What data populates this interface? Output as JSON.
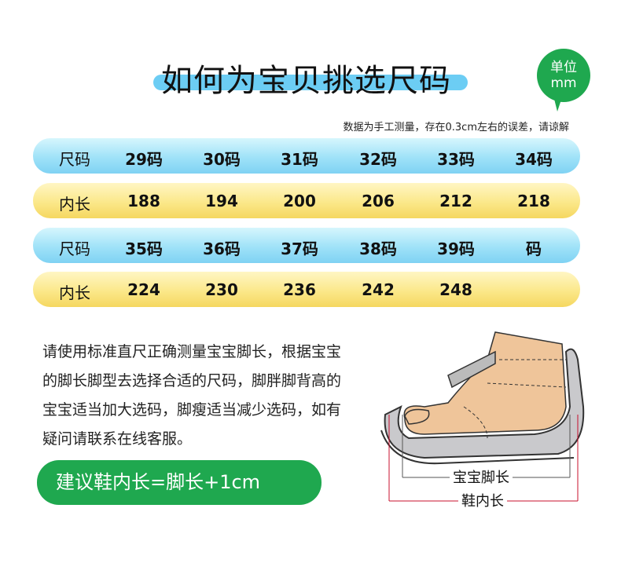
{
  "header": {
    "title": "如何为宝贝挑选尺码",
    "unit_line1": "单位",
    "unit_line2": "mm",
    "note": "数据为手工测量，存在0.3cm左右的误差，请谅解"
  },
  "table": {
    "rows": [
      {
        "label": "尺码",
        "values": [
          "29码",
          "30码",
          "31码",
          "32码",
          "33码",
          "34码"
        ]
      },
      {
        "label": "内长",
        "values": [
          "188",
          "194",
          "200",
          "206",
          "212",
          "218"
        ]
      },
      {
        "label": "尺码",
        "values": [
          "35码",
          "36码",
          "37码",
          "38码",
          "39码",
          "码"
        ]
      },
      {
        "label": "内长",
        "values": [
          "224",
          "230",
          "236",
          "242",
          "248",
          ""
        ]
      }
    ]
  },
  "description": "请使用标准直尺正确测量宝宝脚长，根据宝宝的脚长脚型去选择合适的尺码，脚胖脚背高的宝宝适当加大选码，脚瘦适当减少选码，如有疑问请联系在线客服。",
  "advice": "建议鞋内长=脚长+1cm",
  "diagram": {
    "foot_length_label": "宝宝脚长",
    "shoe_inner_length_label": "鞋内长"
  },
  "colors": {
    "green": "#1fa84f",
    "blue": "#7fd2f3",
    "yellow": "#f5d760",
    "measure_red": "#c8102e"
  }
}
